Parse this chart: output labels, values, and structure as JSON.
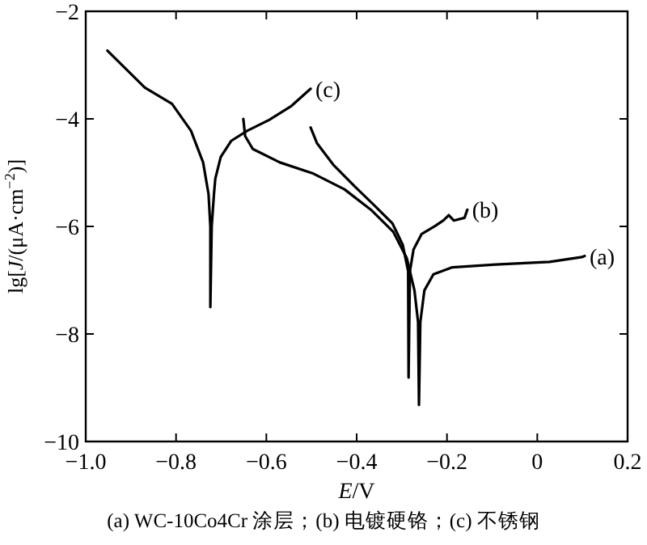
{
  "chart_data": {
    "type": "line",
    "xlabel": "*E*/V",
    "ylabel": "lg[*J*/(μA·cm$^{−2}$)]",
    "xlim": [
      -1.0,
      0.2
    ],
    "ylim": [
      -10,
      -2
    ],
    "xticks": [
      {
        "value": -1.0,
        "label": "−1.0"
      },
      {
        "value": -0.8,
        "label": "−0.8"
      },
      {
        "value": -0.6,
        "label": "−0.6"
      },
      {
        "value": -0.4,
        "label": "−0.4"
      },
      {
        "value": -0.2,
        "label": "−0.2"
      },
      0,
      0.2
    ],
    "yticks": [
      {
        "value": -10,
        "label": "−10"
      },
      {
        "value": -8,
        "label": "−8"
      },
      {
        "value": -6,
        "label": "−6"
      },
      {
        "value": -4,
        "label": "−4"
      },
      {
        "value": -2,
        "label": "−2"
      }
    ],
    "grid": false,
    "marker": "none",
    "line_style": "solid",
    "series": [
      {
        "name": "(a)",
        "color": "#000000",
        "x": [
          -0.651,
          -0.647,
          -0.63,
          -0.57,
          -0.498,
          -0.427,
          -0.367,
          -0.319,
          -0.289,
          -0.272,
          -0.264,
          -0.262,
          -0.259,
          -0.25,
          -0.23,
          -0.188,
          -0.092,
          0.027,
          0.099,
          0.105
        ],
        "values": [
          -4.0,
          -4.32,
          -4.56,
          -4.81,
          -5.01,
          -5.31,
          -5.7,
          -6.1,
          -6.59,
          -7.19,
          -7.78,
          -9.32,
          -7.78,
          -7.19,
          -6.89,
          -6.76,
          -6.71,
          -6.66,
          -6.57,
          -6.55
        ]
      },
      {
        "name": "(b)",
        "color": "#000000",
        "x": [
          -0.502,
          -0.488,
          -0.452,
          -0.405,
          -0.357,
          -0.321,
          -0.298,
          -0.286,
          -0.285,
          -0.282,
          -0.274,
          -0.256,
          -0.226,
          -0.208,
          -0.196,
          -0.185,
          -0.161,
          -0.155
        ],
        "values": [
          -4.16,
          -4.45,
          -4.85,
          -5.25,
          -5.64,
          -5.94,
          -6.34,
          -6.83,
          -8.81,
          -6.83,
          -6.43,
          -6.14,
          -5.99,
          -5.89,
          -5.79,
          -5.89,
          -5.84,
          -5.69
        ]
      },
      {
        "name": "(c)",
        "color": "#000000",
        "x": [
          -0.952,
          -0.869,
          -0.809,
          -0.767,
          -0.74,
          -0.728,
          -0.724,
          -0.724,
          -0.721,
          -0.716,
          -0.713,
          -0.701,
          -0.678,
          -0.642,
          -0.594,
          -0.546,
          -0.502
        ],
        "values": [
          -2.73,
          -3.42,
          -3.72,
          -4.22,
          -4.81,
          -5.4,
          -6.0,
          -7.5,
          -6.0,
          -5.4,
          -5.11,
          -4.71,
          -4.41,
          -4.22,
          -4.02,
          -3.77,
          -3.44
        ]
      }
    ],
    "annotations": [
      "(a) WC-10Co4Cr 涂层；(b) 电镀硬铬；(c) 不锈钢"
    ]
  }
}
